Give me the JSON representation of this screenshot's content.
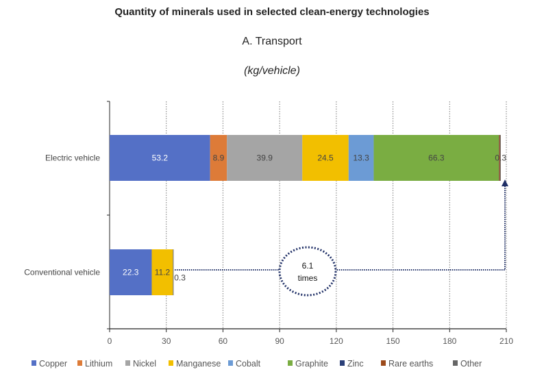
{
  "chart_data": {
    "type": "bar",
    "orientation": "horizontal",
    "stacked": true,
    "title": "Quantity of minerals used in selected clean-energy technologies",
    "subtitle": "A. Transport",
    "unit": "(kg/vehicle)",
    "categories": [
      "Electric vehicle",
      "Conventional vehicle"
    ],
    "series": [
      {
        "name": "Copper",
        "color": "#5470c6",
        "values": [
          53.2,
          22.3
        ],
        "labels": [
          "53.2",
          "22.3"
        ]
      },
      {
        "name": "Lithium",
        "color": "#dd7b38",
        "values": [
          8.9,
          0
        ],
        "labels": [
          "8.9",
          ""
        ]
      },
      {
        "name": "Nickel",
        "color": "#a5a5a5",
        "values": [
          39.9,
          0
        ],
        "labels": [
          "39.9",
          ""
        ]
      },
      {
        "name": "Manganese",
        "color": "#f2bf00",
        "values": [
          24.5,
          11.2
        ],
        "labels": [
          "24.5",
          "11.2"
        ]
      },
      {
        "name": "Cobalt",
        "color": "#6c9bd5",
        "values": [
          13.3,
          0
        ],
        "labels": [
          "13.3",
          ""
        ]
      },
      {
        "name": "Graphite",
        "color": "#7aad42",
        "values": [
          66.3,
          0
        ],
        "labels": [
          "66.3",
          ""
        ]
      },
      {
        "name": "Zinc",
        "color": "#2b3f78",
        "values": [
          0.1,
          0
        ],
        "labels": [
          "",
          ""
        ]
      },
      {
        "name": "Rare earths",
        "color": "#9c4a1a",
        "values": [
          0.5,
          0
        ],
        "labels": [
          "",
          ""
        ]
      },
      {
        "name": "Other",
        "color": "#666666",
        "values": [
          0.3,
          0.3
        ],
        "labels": [
          "0.3",
          "0.3"
        ]
      }
    ],
    "xlim": [
      0,
      210
    ],
    "xticks": [
      "0",
      "30",
      "60",
      "90",
      "120",
      "150",
      "180",
      "210"
    ],
    "grid": "vertical dotted",
    "legend": "bottom",
    "annotation": {
      "line1": "6.1",
      "line2": "times",
      "color": "#1f2f66"
    }
  }
}
